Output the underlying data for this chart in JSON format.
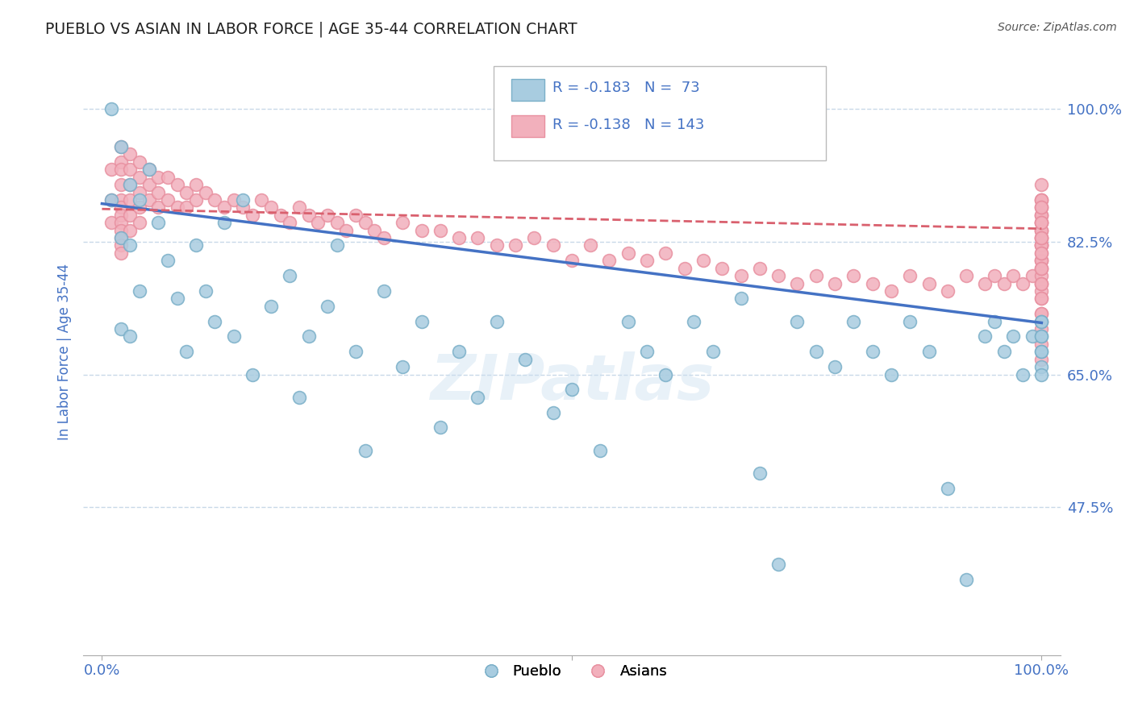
{
  "title": "PUEBLO VS ASIAN IN LABOR FORCE | AGE 35-44 CORRELATION CHART",
  "source": "Source: ZipAtlas.com",
  "ylabel": "In Labor Force | Age 35-44",
  "xlim": [
    -0.02,
    1.02
  ],
  "ylim": [
    0.28,
    1.08
  ],
  "yticks": [
    0.475,
    0.65,
    0.825,
    1.0
  ],
  "ytick_labels": [
    "47.5%",
    "65.0%",
    "82.5%",
    "100.0%"
  ],
  "pueblo_R": -0.183,
  "pueblo_N": 73,
  "asian_R": -0.138,
  "asian_N": 143,
  "pueblo_color": "#a8cce0",
  "asian_color": "#f2b0bc",
  "pueblo_edge_color": "#7aafc8",
  "asian_edge_color": "#e890a0",
  "pueblo_line_color": "#4472c4",
  "asian_line_color": "#d9606e",
  "background_color": "#ffffff",
  "text_color": "#4472c4",
  "title_color": "#4472c4",
  "grid_color": "#c8d8e8",
  "pueblo_trend_x0": 0.0,
  "pueblo_trend_y0": 0.875,
  "pueblo_trend_x1": 1.0,
  "pueblo_trend_y1": 0.718,
  "asian_trend_x0": 0.0,
  "asian_trend_y0": 0.868,
  "asian_trend_x1": 1.0,
  "asian_trend_y1": 0.842,
  "pueblo_x": [
    0.01,
    0.01,
    0.02,
    0.02,
    0.02,
    0.03,
    0.03,
    0.03,
    0.04,
    0.04,
    0.05,
    0.06,
    0.07,
    0.08,
    0.09,
    0.1,
    0.11,
    0.12,
    0.13,
    0.14,
    0.15,
    0.16,
    0.18,
    0.2,
    0.21,
    0.22,
    0.24,
    0.25,
    0.27,
    0.28,
    0.3,
    0.32,
    0.34,
    0.36,
    0.38,
    0.4,
    0.42,
    0.45,
    0.48,
    0.5,
    0.53,
    0.56,
    0.58,
    0.6,
    0.63,
    0.65,
    0.68,
    0.7,
    0.72,
    0.74,
    0.76,
    0.78,
    0.8,
    0.82,
    0.84,
    0.86,
    0.88,
    0.9,
    0.92,
    0.94,
    0.95,
    0.96,
    0.97,
    0.98,
    0.99,
    1.0,
    1.0,
    1.0,
    1.0,
    1.0,
    1.0,
    1.0,
    1.0
  ],
  "pueblo_y": [
    1.0,
    0.88,
    0.95,
    0.83,
    0.71,
    0.9,
    0.82,
    0.7,
    0.88,
    0.76,
    0.92,
    0.85,
    0.8,
    0.75,
    0.68,
    0.82,
    0.76,
    0.72,
    0.85,
    0.7,
    0.88,
    0.65,
    0.74,
    0.78,
    0.62,
    0.7,
    0.74,
    0.82,
    0.68,
    0.55,
    0.76,
    0.66,
    0.72,
    0.58,
    0.68,
    0.62,
    0.72,
    0.67,
    0.6,
    0.63,
    0.55,
    0.72,
    0.68,
    0.65,
    0.72,
    0.68,
    0.75,
    0.52,
    0.4,
    0.72,
    0.68,
    0.66,
    0.72,
    0.68,
    0.65,
    0.72,
    0.68,
    0.5,
    0.38,
    0.7,
    0.72,
    0.68,
    0.7,
    0.65,
    0.7,
    0.72,
    0.7,
    0.68,
    0.66,
    0.7,
    0.68,
    0.65,
    0.72
  ],
  "asian_x": [
    0.01,
    0.01,
    0.01,
    0.02,
    0.02,
    0.02,
    0.02,
    0.02,
    0.02,
    0.02,
    0.02,
    0.02,
    0.02,
    0.02,
    0.02,
    0.03,
    0.03,
    0.03,
    0.03,
    0.03,
    0.03,
    0.04,
    0.04,
    0.04,
    0.04,
    0.04,
    0.05,
    0.05,
    0.05,
    0.06,
    0.06,
    0.06,
    0.07,
    0.07,
    0.08,
    0.08,
    0.09,
    0.09,
    0.1,
    0.1,
    0.11,
    0.12,
    0.13,
    0.14,
    0.15,
    0.16,
    0.17,
    0.18,
    0.19,
    0.2,
    0.21,
    0.22,
    0.23,
    0.24,
    0.25,
    0.26,
    0.27,
    0.28,
    0.29,
    0.3,
    0.32,
    0.34,
    0.36,
    0.38,
    0.4,
    0.42,
    0.44,
    0.46,
    0.48,
    0.5,
    0.52,
    0.54,
    0.56,
    0.58,
    0.6,
    0.62,
    0.64,
    0.66,
    0.68,
    0.7,
    0.72,
    0.74,
    0.76,
    0.78,
    0.8,
    0.82,
    0.84,
    0.86,
    0.88,
    0.9,
    0.92,
    0.94,
    0.95,
    0.96,
    0.97,
    0.98,
    0.99,
    1.0,
    1.0,
    1.0,
    1.0,
    1.0,
    1.0,
    1.0,
    1.0,
    1.0,
    1.0,
    1.0,
    1.0,
    1.0,
    1.0,
    1.0,
    1.0,
    1.0,
    1.0,
    1.0,
    1.0,
    1.0,
    1.0,
    1.0,
    1.0,
    1.0,
    1.0,
    1.0,
    1.0,
    1.0,
    1.0,
    1.0,
    1.0,
    1.0,
    1.0,
    1.0,
    1.0,
    1.0,
    1.0,
    1.0,
    1.0,
    1.0,
    1.0,
    1.0,
    1.0,
    1.0,
    1.0
  ],
  "asian_y": [
    0.92,
    0.88,
    0.85,
    0.95,
    0.93,
    0.92,
    0.9,
    0.88,
    0.87,
    0.86,
    0.85,
    0.84,
    0.83,
    0.82,
    0.81,
    0.94,
    0.92,
    0.9,
    0.88,
    0.86,
    0.84,
    0.93,
    0.91,
    0.89,
    0.87,
    0.85,
    0.92,
    0.9,
    0.88,
    0.91,
    0.89,
    0.87,
    0.91,
    0.88,
    0.9,
    0.87,
    0.89,
    0.87,
    0.9,
    0.88,
    0.89,
    0.88,
    0.87,
    0.88,
    0.87,
    0.86,
    0.88,
    0.87,
    0.86,
    0.85,
    0.87,
    0.86,
    0.85,
    0.86,
    0.85,
    0.84,
    0.86,
    0.85,
    0.84,
    0.83,
    0.85,
    0.84,
    0.84,
    0.83,
    0.83,
    0.82,
    0.82,
    0.83,
    0.82,
    0.8,
    0.82,
    0.8,
    0.81,
    0.8,
    0.81,
    0.79,
    0.8,
    0.79,
    0.78,
    0.79,
    0.78,
    0.77,
    0.78,
    0.77,
    0.78,
    0.77,
    0.76,
    0.78,
    0.77,
    0.76,
    0.78,
    0.77,
    0.78,
    0.77,
    0.78,
    0.77,
    0.78,
    0.9,
    0.88,
    0.86,
    0.85,
    0.84,
    0.83,
    0.82,
    0.87,
    0.85,
    0.83,
    0.82,
    0.8,
    0.88,
    0.86,
    0.84,
    0.82,
    0.8,
    0.79,
    0.77,
    0.88,
    0.86,
    0.84,
    0.82,
    0.8,
    0.78,
    0.76,
    0.87,
    0.85,
    0.83,
    0.81,
    0.79,
    0.77,
    0.75,
    0.73,
    0.72,
    0.87,
    0.85,
    0.83,
    0.81,
    0.79,
    0.77,
    0.75,
    0.73,
    0.71,
    0.69,
    0.67
  ]
}
